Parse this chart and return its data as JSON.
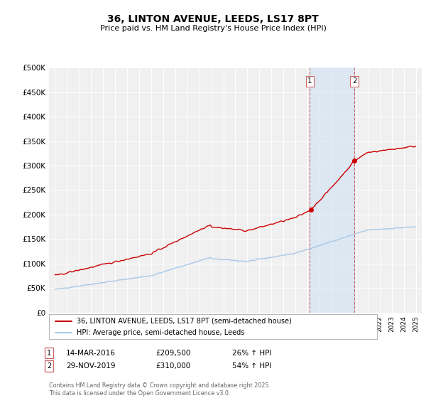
{
  "title": "36, LINTON AVENUE, LEEDS, LS17 8PT",
  "subtitle": "Price paid vs. HM Land Registry's House Price Index (HPI)",
  "ylim": [
    0,
    500000
  ],
  "yticks": [
    0,
    50000,
    100000,
    150000,
    200000,
    250000,
    300000,
    350000,
    400000,
    450000,
    500000
  ],
  "ytick_labels": [
    "£0",
    "£50K",
    "£100K",
    "£150K",
    "£200K",
    "£250K",
    "£300K",
    "£350K",
    "£400K",
    "£450K",
    "£500K"
  ],
  "hpi_color": "#a8c8e8",
  "price_color": "#cc0000",
  "sale1_yr": 2016.2,
  "sale2_yr": 2019.9,
  "sale1_price": 209500,
  "sale2_price": 310000,
  "sale1_date": "14-MAR-2016",
  "sale1_price_str": "£209,500",
  "sale1_pct": "26% ↑ HPI",
  "sale2_date": "29-NOV-2019",
  "sale2_price_str": "£310,000",
  "sale2_pct": "54% ↑ HPI",
  "legend_label1": "36, LINTON AVENUE, LEEDS, LS17 8PT (semi-detached house)",
  "legend_label2": "HPI: Average price, semi-detached house, Leeds",
  "footnote": "Contains HM Land Registry data © Crown copyright and database right 2025.\nThis data is licensed under the Open Government Licence v3.0.",
  "background_color": "#ffffff",
  "plot_bg_color": "#f0f0f0",
  "grid_color": "#ffffff",
  "shade_color": "#cce0f5"
}
